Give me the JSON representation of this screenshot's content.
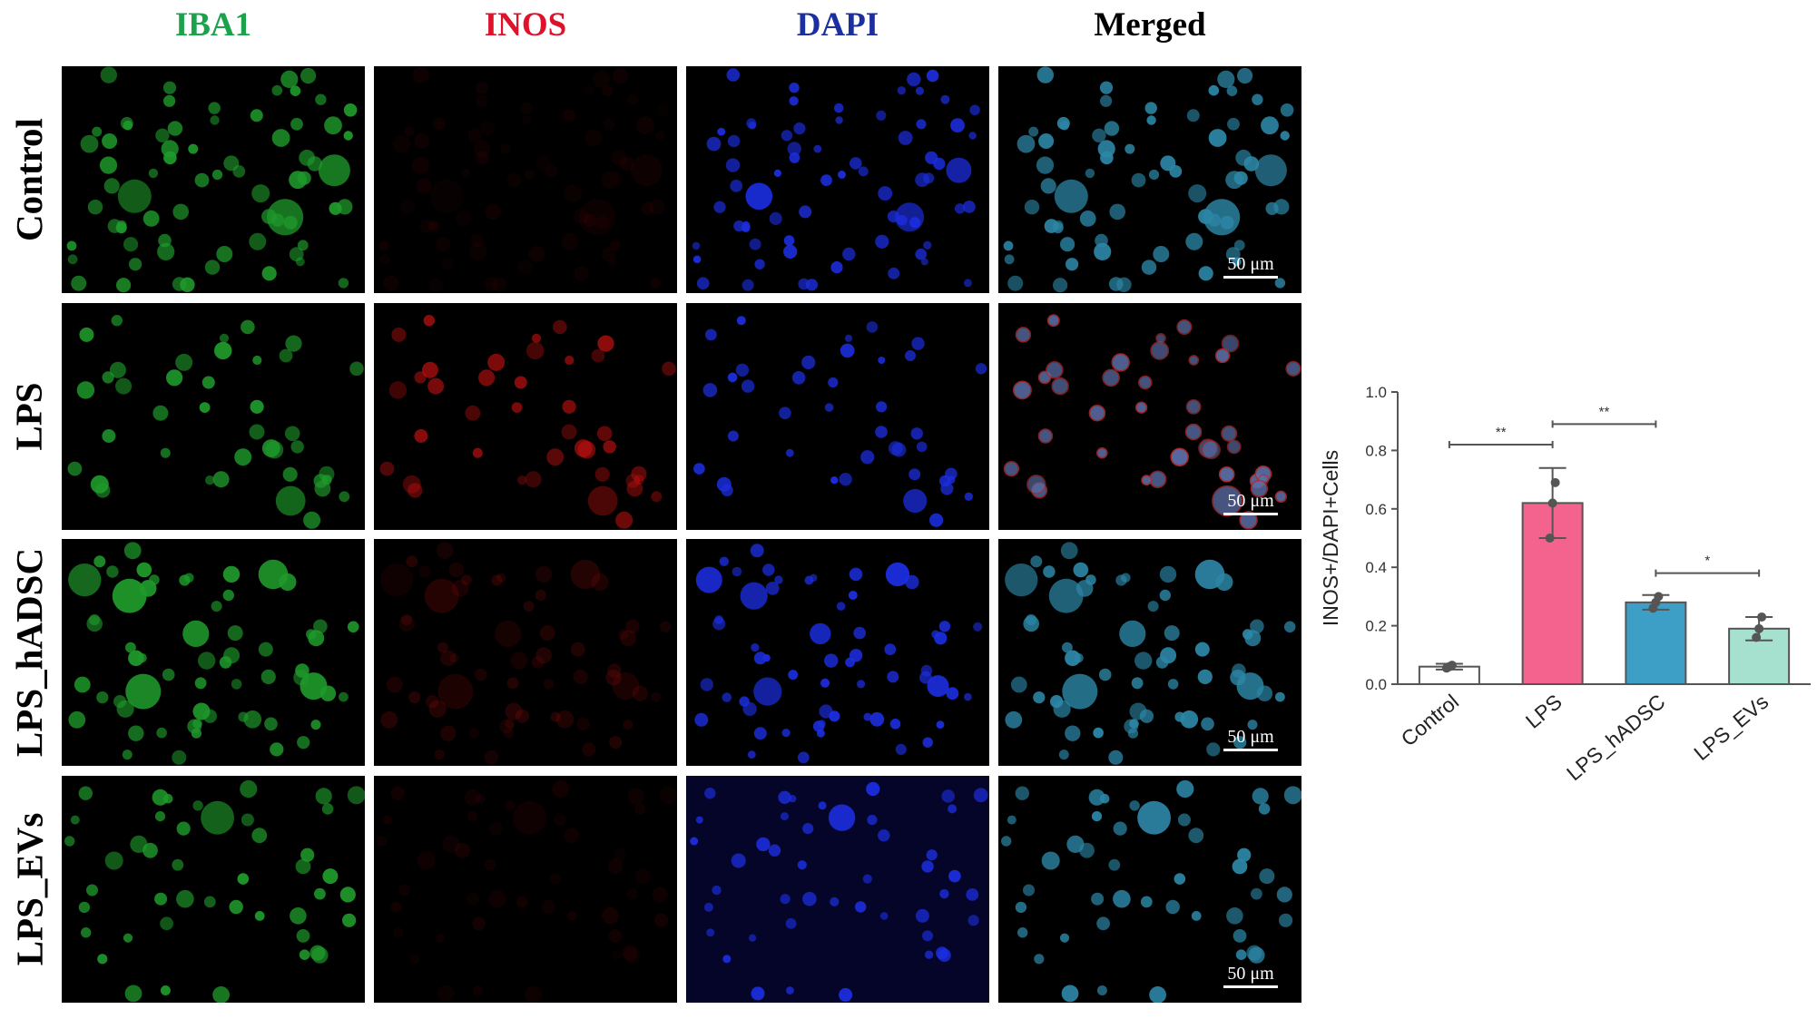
{
  "columns": [
    {
      "label": "IBA1",
      "color": "#1aa34a"
    },
    {
      "label": "INOS",
      "color": "#e0112b"
    },
    {
      "label": "DAPI",
      "color": "#1b2fa0"
    },
    {
      "label": "Merged",
      "color": "#000000"
    }
  ],
  "rows": [
    "Control",
    "LPS",
    "LPS_hADSC",
    "LPS_EVs"
  ],
  "scale_bar": "50 μm",
  "chart_data": {
    "type": "bar",
    "categories": [
      "Control",
      "LPS",
      "LPS_hADSC",
      "LPS_EVs"
    ],
    "values": [
      0.06,
      0.62,
      0.28,
      0.19
    ],
    "errors": [
      0.01,
      0.12,
      0.025,
      0.04
    ],
    "points": [
      [
        0.055,
        0.06,
        0.065
      ],
      [
        0.5,
        0.62,
        0.69
      ],
      [
        0.26,
        0.28,
        0.3
      ],
      [
        0.16,
        0.19,
        0.23
      ]
    ],
    "colors": [
      "#ffffff",
      "#f4628e",
      "#3d9fc6",
      "#a6e1cf"
    ],
    "ylabel": "INOS+/DAPI+Cells",
    "xlabel": "",
    "title": "",
    "ylim": [
      0,
      1.0
    ],
    "yticks": [
      "0.0",
      "0.2",
      "0.4",
      "0.6",
      "0.8",
      "1.0"
    ],
    "significance": [
      {
        "from": 0,
        "to": 1,
        "y": 0.82,
        "label": "**"
      },
      {
        "from": 1,
        "to": 2,
        "y": 0.89,
        "label": "**"
      },
      {
        "from": 2,
        "to": 3,
        "y": 0.38,
        "label": "*"
      }
    ]
  }
}
